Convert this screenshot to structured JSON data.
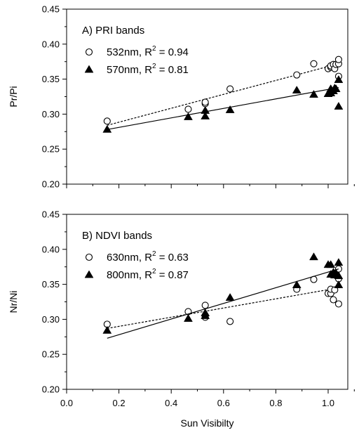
{
  "chart_data": [
    {
      "type": "scatter",
      "title": "A) PRI bands",
      "ylabel": "Pr/Pi",
      "xlabel": "",
      "xlim": [
        0.0,
        1.1
      ],
      "ylim": [
        0.2,
        0.45
      ],
      "x_ticks": [
        0.0,
        0.2,
        0.4,
        0.6,
        0.8,
        1.0
      ],
      "x_tick_labels": [
        "",
        "",
        "",
        "",
        "",
        ""
      ],
      "y_ticks": [
        0.2,
        0.25,
        0.3,
        0.35,
        0.4,
        0.45
      ],
      "y_tick_labels": [
        "0.20",
        "0.25",
        "0.30",
        "0.35",
        "0.40",
        "0.45"
      ],
      "legend_position": "top-left",
      "series": [
        {
          "name": "532nm, R",
          "sup": "2",
          "r2_text": " = 0.94",
          "marker": "open-circle",
          "fit_style": "dashed",
          "fit": [
            [
              0.155,
              0.284
            ],
            [
              1.04,
              0.372
            ]
          ],
          "points": [
            [
              0.155,
              0.29
            ],
            [
              0.465,
              0.307
            ],
            [
              0.53,
              0.315
            ],
            [
              0.53,
              0.317
            ],
            [
              0.625,
              0.336
            ],
            [
              0.88,
              0.356
            ],
            [
              0.945,
              0.372
            ],
            [
              1.0,
              0.365
            ],
            [
              1.01,
              0.367
            ],
            [
              1.01,
              0.369
            ],
            [
              1.02,
              0.371
            ],
            [
              1.025,
              0.365
            ],
            [
              1.03,
              0.371
            ],
            [
              1.04,
              0.372
            ],
            [
              1.04,
              0.378
            ],
            [
              1.04,
              0.354
            ]
          ]
        },
        {
          "name": "570nm, R",
          "sup": "2",
          "r2_text": " = 0.81",
          "marker": "filled-triangle",
          "fit_style": "solid",
          "fit": [
            [
              0.155,
              0.278
            ],
            [
              1.04,
              0.338
            ]
          ],
          "points": [
            [
              0.155,
              0.278
            ],
            [
              0.465,
              0.296
            ],
            [
              0.53,
              0.305
            ],
            [
              0.53,
              0.297
            ],
            [
              0.625,
              0.306
            ],
            [
              0.88,
              0.334
            ],
            [
              0.945,
              0.328
            ],
            [
              1.0,
              0.329
            ],
            [
              1.01,
              0.33
            ],
            [
              1.01,
              0.336
            ],
            [
              1.02,
              0.333
            ],
            [
              1.025,
              0.337
            ],
            [
              1.03,
              0.336
            ],
            [
              1.04,
              0.349
            ],
            [
              1.04,
              0.311
            ]
          ]
        }
      ]
    },
    {
      "type": "scatter",
      "title": "B) NDVI bands",
      "ylabel": "Nr/Ni",
      "xlabel": "Sun Visibilty",
      "xlim": [
        0.0,
        1.1
      ],
      "ylim": [
        0.2,
        0.45
      ],
      "x_ticks": [
        0.0,
        0.2,
        0.4,
        0.6,
        0.8,
        1.0
      ],
      "x_tick_labels": [
        "0.0",
        "0.2",
        "0.4",
        "0.6",
        "0.8",
        "1.0"
      ],
      "y_ticks": [
        0.2,
        0.25,
        0.3,
        0.35,
        0.4,
        0.45
      ],
      "y_tick_labels": [
        "0.20",
        "0.25",
        "0.30",
        "0.35",
        "0.40",
        "0.45"
      ],
      "legend_position": "top-left",
      "series": [
        {
          "name": "630nm, R",
          "sup": "2",
          "r2_text": " = 0.63",
          "marker": "open-circle",
          "fit_style": "dashed",
          "fit": [
            [
              0.155,
              0.287
            ],
            [
              1.04,
              0.345
            ]
          ],
          "points": [
            [
              0.155,
              0.293
            ],
            [
              0.465,
              0.311
            ],
            [
              0.53,
              0.303
            ],
            [
              0.53,
              0.32
            ],
            [
              0.625,
              0.297
            ],
            [
              0.88,
              0.343
            ],
            [
              0.945,
              0.357
            ],
            [
              1.0,
              0.337
            ],
            [
              1.01,
              0.337
            ],
            [
              1.01,
              0.343
            ],
            [
              1.02,
              0.328
            ],
            [
              1.025,
              0.342
            ],
            [
              1.03,
              0.365
            ],
            [
              1.04,
              0.372
            ],
            [
              1.04,
              0.358
            ],
            [
              1.04,
              0.322
            ]
          ]
        },
        {
          "name": "800nm, R",
          "sup": "2",
          "r2_text": " = 0.87",
          "marker": "filled-triangle",
          "fit_style": "solid",
          "fit": [
            [
              0.155,
              0.273
            ],
            [
              1.04,
              0.372
            ]
          ],
          "points": [
            [
              0.155,
              0.284
            ],
            [
              0.465,
              0.301
            ],
            [
              0.53,
              0.305
            ],
            [
              0.53,
              0.309
            ],
            [
              0.625,
              0.331
            ],
            [
              0.88,
              0.349
            ],
            [
              0.945,
              0.389
            ],
            [
              1.0,
              0.378
            ],
            [
              1.01,
              0.364
            ],
            [
              1.01,
              0.378
            ],
            [
              1.02,
              0.367
            ],
            [
              1.025,
              0.363
            ],
            [
              1.03,
              0.366
            ],
            [
              1.04,
              0.381
            ],
            [
              1.04,
              0.349
            ],
            [
              1.04,
              0.362
            ]
          ]
        }
      ]
    }
  ]
}
